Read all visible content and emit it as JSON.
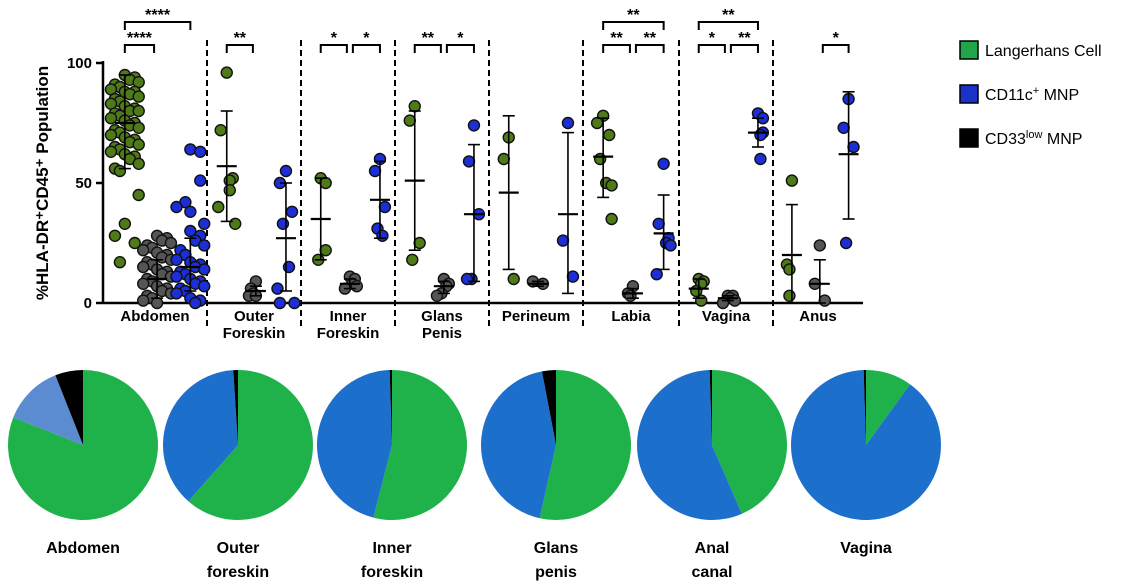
{
  "chart_data": [
    {
      "type": "scatter",
      "ylabel": "%HLA-DR⁺CD45⁺ Population",
      "ylim": [
        0,
        100
      ],
      "yticks": [
        "0",
        "50",
        "100"
      ],
      "legend": {
        "placement": "right",
        "entries": [
          {
            "main": "Langerhans Cell",
            "sup": "",
            "tail": "",
            "color": "#1fa64b"
          },
          {
            "main": "CD11c",
            "sup": "+",
            "tail": " MNP",
            "color": "#1932c8"
          },
          {
            "main": "CD33",
            "sup": "low",
            "tail": " MNP",
            "color": "#000000"
          }
        ]
      },
      "point_colors": {
        "lc": "#4e7a17",
        "cd11c": "#1c2fd6",
        "cd33": "#555555"
      },
      "groups": [
        {
          "label_lines": [
            "Abdomen"
          ],
          "lc": [
            95,
            94,
            93,
            92,
            91,
            90,
            89,
            88,
            88,
            87,
            86,
            85,
            84,
            83,
            82,
            81,
            80,
            80,
            79,
            78,
            77,
            76,
            75,
            74,
            73,
            72,
            71,
            70,
            69,
            68,
            67,
            66,
            65,
            64,
            63,
            62,
            61,
            60,
            58,
            56,
            55,
            45,
            33,
            28,
            25,
            17
          ],
          "cd33": [
            28,
            27,
            26,
            25,
            24,
            23,
            22,
            21,
            20,
            19,
            18,
            17,
            16,
            15,
            14,
            13,
            12,
            11,
            10,
            9,
            8,
            7,
            6,
            5,
            4,
            3,
            2,
            1,
            0
          ],
          "cd11c": [
            64,
            63,
            51,
            42,
            40,
            38,
            33,
            30,
            28,
            26,
            24,
            22,
            20,
            18,
            17,
            16,
            15,
            14,
            13,
            12,
            11,
            10,
            9,
            8,
            7,
            6,
            5,
            4,
            2,
            1,
            0
          ],
          "lc_stats": [
            75,
            56,
            95
          ],
          "cd33_stats": [
            10,
            2,
            18
          ],
          "cd11c_stats": [
            15,
            5,
            27
          ]
        },
        {
          "label_lines": [
            "Outer",
            "Foreskin"
          ],
          "lc": [
            96,
            72,
            52,
            51,
            47,
            40,
            33
          ],
          "cd33": [
            9,
            6,
            4,
            3,
            3
          ],
          "cd11c": [
            55,
            50,
            38,
            33,
            15,
            6,
            0,
            0
          ],
          "lc_stats": [
            57,
            34,
            80
          ],
          "cd33_stats": [
            5,
            3,
            7
          ],
          "cd11c_stats": [
            27,
            5,
            50
          ]
        },
        {
          "label_lines": [
            "Inner",
            "Foreskin"
          ],
          "lc": [
            52,
            50,
            22,
            18
          ],
          "cd33": [
            11,
            10,
            8,
            7,
            6
          ],
          "cd11c": [
            60,
            55,
            40,
            31,
            28
          ],
          "lc_stats": [
            35,
            18,
            52
          ],
          "cd33_stats": [
            8,
            6,
            10
          ],
          "cd11c_stats": [
            43,
            27,
            59
          ]
        },
        {
          "label_lines": [
            "Glans",
            "Penis"
          ],
          "lc": [
            82,
            76,
            25,
            18
          ],
          "cd33": [
            10,
            8,
            7,
            4,
            3
          ],
          "cd11c": [
            74,
            59,
            37,
            10,
            10
          ],
          "lc_stats": [
            51,
            22,
            80
          ],
          "cd33_stats": [
            7,
            4,
            9
          ],
          "cd11c_stats": [
            37,
            9,
            66
          ]
        },
        {
          "label_lines": [
            "Perineum"
          ],
          "lc": [
            69,
            60,
            10
          ],
          "cd33": [
            9,
            8
          ],
          "cd11c": [
            75,
            26,
            11
          ],
          "lc_stats": [
            46,
            14,
            78
          ],
          "cd33_stats": [
            8,
            7,
            9
          ],
          "cd11c_stats": [
            37,
            4,
            71
          ]
        },
        {
          "label_lines": [
            "Labia"
          ],
          "lc": [
            78,
            75,
            70,
            60,
            50,
            49,
            35
          ],
          "cd33": [
            7,
            4,
            3
          ],
          "cd11c": [
            58,
            33,
            27,
            25,
            24,
            12
          ],
          "lc_stats": [
            61,
            44,
            77
          ],
          "cd33_stats": [
            4,
            2,
            6
          ],
          "cd11c_stats": [
            29,
            14,
            45
          ]
        },
        {
          "label_lines": [
            "Vagina"
          ],
          "lc": [
            10,
            9,
            8,
            5,
            1
          ],
          "cd33": [
            3,
            3,
            2,
            1,
            0
          ],
          "cd11c": [
            79,
            77,
            71,
            70,
            60
          ],
          "lc_stats": [
            6,
            2,
            10
          ],
          "cd33_stats": [
            2,
            1,
            3
          ],
          "cd11c_stats": [
            71,
            65,
            77
          ]
        },
        {
          "label_lines": [
            "Anus"
          ],
          "lc": [
            51,
            16,
            14,
            3
          ],
          "cd33": [
            24,
            8,
            1
          ],
          "cd11c": [
            85,
            73,
            65,
            25
          ],
          "lc_stats": [
            20,
            0,
            41
          ],
          "cd33_stats": [
            8,
            0,
            18
          ],
          "cd11c_stats": [
            62,
            35,
            88
          ]
        }
      ],
      "significance": [
        {
          "group": 0,
          "from": "lc",
          "to": "cd11c",
          "level": 1,
          "label": "****"
        },
        {
          "group": 0,
          "from": "lc",
          "to": "cd33",
          "level": 0,
          "label": "****"
        },
        {
          "group": 1,
          "from": "lc",
          "to": "cd33",
          "level": 0,
          "label": "**"
        },
        {
          "group": 2,
          "from": "lc",
          "to": "cd33",
          "level": 0,
          "label": "*"
        },
        {
          "group": 2,
          "from": "cd33",
          "to": "cd11c",
          "level": 0,
          "label": "*"
        },
        {
          "group": 3,
          "from": "lc",
          "to": "cd33",
          "level": 0,
          "label": "**"
        },
        {
          "group": 3,
          "from": "cd33",
          "to": "cd11c",
          "level": 0,
          "label": "*"
        },
        {
          "group": 5,
          "from": "lc",
          "to": "cd11c",
          "level": 1,
          "label": "**"
        },
        {
          "group": 5,
          "from": "lc",
          "to": "cd33",
          "level": 0,
          "label": "**"
        },
        {
          "group": 5,
          "from": "cd33",
          "to": "cd11c",
          "level": 0,
          "label": "**"
        },
        {
          "group": 6,
          "from": "lc",
          "to": "cd11c",
          "level": 1,
          "label": "**"
        },
        {
          "group": 6,
          "from": "lc",
          "to": "cd33",
          "level": 0,
          "label": "*"
        },
        {
          "group": 6,
          "from": "cd33",
          "to": "cd11c",
          "level": 0,
          "label": "**"
        },
        {
          "group": 7,
          "from": "cd33",
          "to": "cd11c",
          "level": 0,
          "label": "*"
        }
      ]
    },
    {
      "type": "pie",
      "slice_order": [
        "Langerhans Cell",
        "CD11c+ MNP",
        "CD33low MNP"
      ],
      "pies": [
        {
          "label_lines": [
            "Abdomen"
          ],
          "values": [
            81,
            13,
            6
          ],
          "colors": [
            "#1fb24b",
            "#5b8bd0",
            "#000000"
          ]
        },
        {
          "label_lines": [
            "Outer",
            "foreskin"
          ],
          "values": [
            61.5,
            37.5,
            1
          ],
          "colors": [
            "#1fb24b",
            "#1d6fcc",
            "#000000"
          ]
        },
        {
          "label_lines": [
            "Inner",
            "foreskin"
          ],
          "values": [
            54,
            45.5,
            0.5
          ],
          "colors": [
            "#1fb24b",
            "#1d6fcc",
            "#000000"
          ]
        },
        {
          "label_lines": [
            "Glans",
            "penis"
          ],
          "values": [
            53.5,
            43.5,
            3
          ],
          "colors": [
            "#1fb24b",
            "#1d6fcc",
            "#000000"
          ]
        },
        {
          "label_lines": [
            "Anal",
            "canal"
          ],
          "values": [
            43.5,
            56,
            0.5
          ],
          "colors": [
            "#1fb24b",
            "#1d6fcc",
            "#000000"
          ]
        },
        {
          "label_lines": [
            "Vagina"
          ],
          "values": [
            10,
            89.5,
            0.5
          ],
          "colors": [
            "#1fb24b",
            "#1d6fcc",
            "#000000"
          ]
        }
      ]
    }
  ]
}
